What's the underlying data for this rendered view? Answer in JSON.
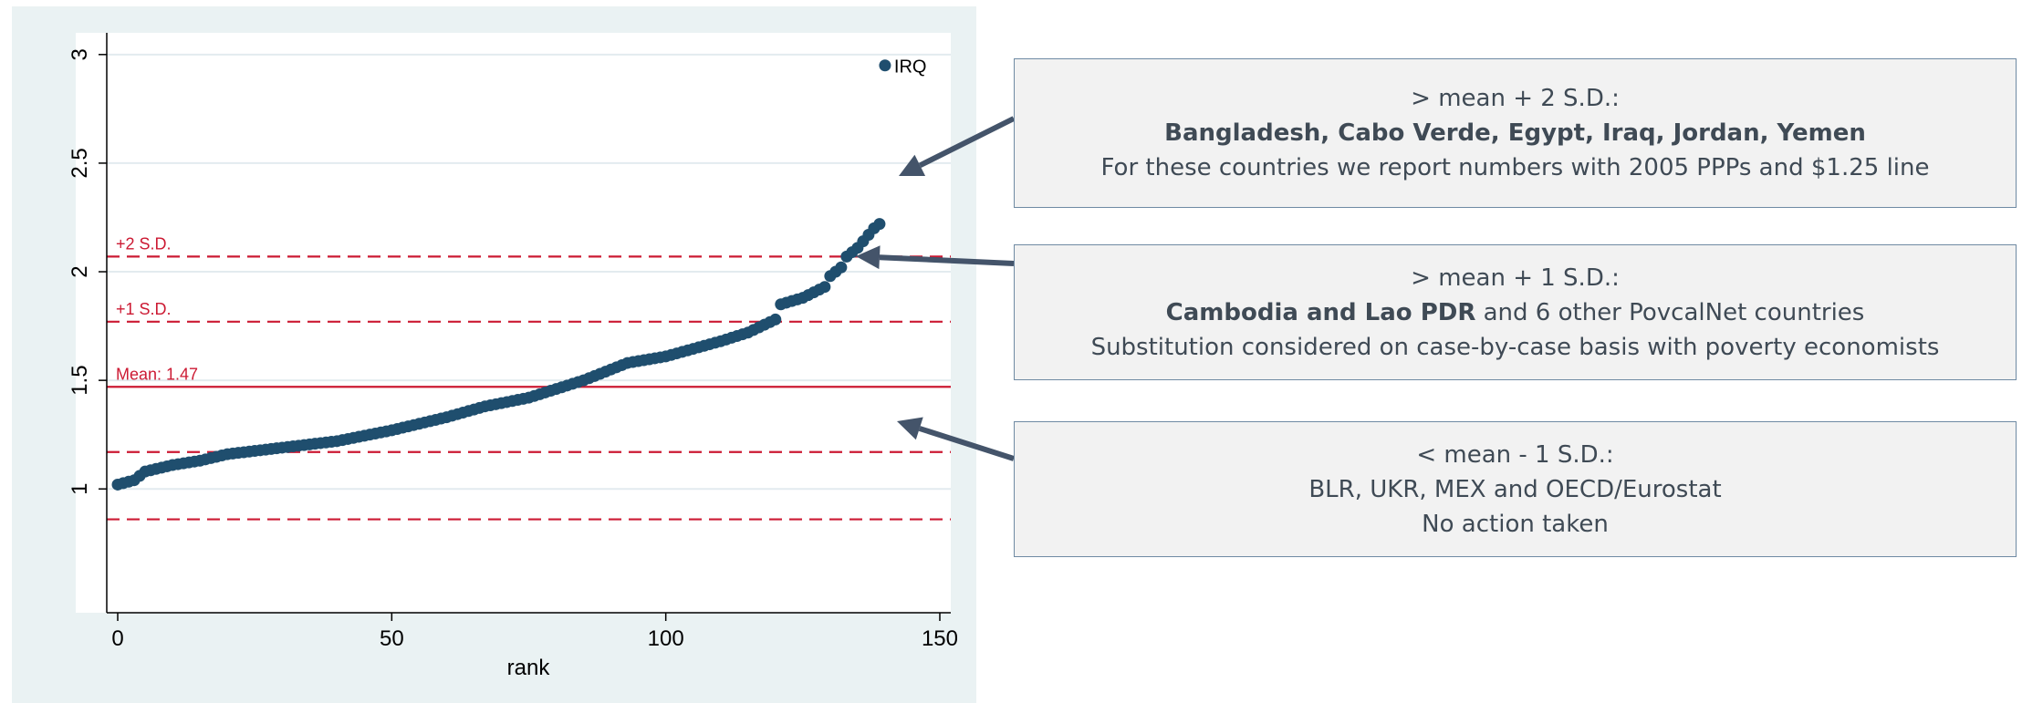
{
  "chart_data": {
    "type": "scatter",
    "xlabel": "rank",
    "ylabel": "",
    "xlim": [
      -2,
      152
    ],
    "ylim": [
      0.43,
      3.1
    ],
    "xticks": [
      0,
      50,
      100,
      150
    ],
    "xtick_labels": [
      "0",
      "50",
      "100",
      "150"
    ],
    "yticks": [
      1,
      1.5,
      2,
      2.5,
      3
    ],
    "ytick_labels": [
      "1",
      "1.5",
      "2",
      "2.5",
      "3"
    ],
    "grid": "horizontal at y ticks",
    "marker_color": "#1f4e6e",
    "reference_line_color": "#cc1a33",
    "reference_lines": [
      {
        "y": 2.07,
        "style": "dashed",
        "label": "+2 S.D."
      },
      {
        "y": 1.77,
        "style": "dashed",
        "label": "+1 S.D."
      },
      {
        "y": 1.47,
        "style": "solid",
        "label": "Mean: 1.47"
      },
      {
        "y": 1.17,
        "style": "dashed",
        "label": ""
      },
      {
        "y": 0.86,
        "style": "dashed",
        "label": ""
      }
    ],
    "curve_anchors": {
      "x": [
        0,
        3,
        5,
        10,
        15,
        20,
        30,
        40,
        50,
        60,
        67,
        75,
        85,
        93,
        100,
        110,
        115,
        120,
        121,
        125,
        129,
        130,
        132,
        133,
        135,
        137,
        138,
        139
      ],
      "y": [
        1.02,
        1.04,
        1.08,
        1.11,
        1.13,
        1.16,
        1.19,
        1.22,
        1.27,
        1.33,
        1.38,
        1.42,
        1.5,
        1.58,
        1.61,
        1.68,
        1.72,
        1.78,
        1.85,
        1.88,
        1.93,
        1.98,
        2.02,
        2.07,
        2.11,
        2.17,
        2.2,
        2.22
      ]
    },
    "outlier": {
      "x": 140,
      "y": 2.95,
      "label": "IRQ"
    }
  },
  "callouts": [
    {
      "line1": "> mean + 2 S.D.:",
      "line2_bold": "Bangladesh, Cabo Verde, Egypt, Iraq, Jordan, Yemen",
      "line2_rest": "",
      "line3": "For these countries we report numbers with 2005 PPPs and $1.25 line"
    },
    {
      "line1": "> mean + 1 S.D.:",
      "line2_bold": "Cambodia and Lao PDR",
      "line2_rest": " and 6 other PovcalNet countries",
      "line3": "Substitution considered on case-by-case basis with poverty economists"
    },
    {
      "line1": "< mean - 1 S.D.:",
      "line2_bold": "",
      "line2_rest": "BLR, UKR, MEX and OECD/Eurostat",
      "line3": "No action taken"
    }
  ],
  "colors": {
    "arrow": "#44546a",
    "panel_bg": "#eaf2f3",
    "callout_bg": "#f2f2f2"
  }
}
